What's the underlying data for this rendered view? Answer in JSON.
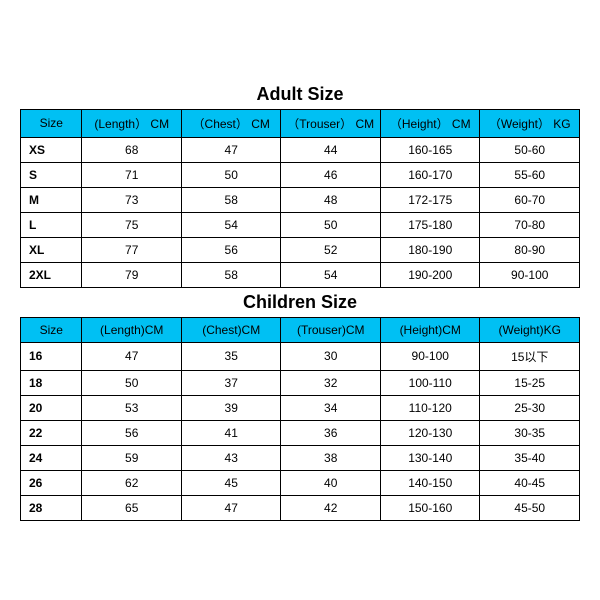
{
  "styling": {
    "header_bg": "#00c0f3",
    "header_text_color": "#000000",
    "border_color": "#000000",
    "title_fontsize": 18,
    "cell_fontsize": 12,
    "background": "#ffffff"
  },
  "adult": {
    "title": "Adult Size",
    "columns": [
      "Size",
      "(Length） CM",
      "（Chest） CM",
      "（Trouser） CM",
      "（Height） CM",
      "（Weight） KG"
    ],
    "rows": [
      [
        "XS",
        "68",
        "47",
        "44",
        "160-165",
        "50-60"
      ],
      [
        "S",
        "71",
        "50",
        "46",
        "160-170",
        "55-60"
      ],
      [
        "M",
        "73",
        "58",
        "48",
        "172-175",
        "60-70"
      ],
      [
        "L",
        "75",
        "54",
        "50",
        "175-180",
        "70-80"
      ],
      [
        "XL",
        "77",
        "56",
        "52",
        "180-190",
        "80-90"
      ],
      [
        "2XL",
        "79",
        "58",
        "54",
        "190-200",
        "90-100"
      ]
    ]
  },
  "children": {
    "title": "Children Size",
    "columns": [
      "Size",
      "(Length)CM",
      "(Chest)CM",
      "(Trouser)CM",
      "(Height)CM",
      "(Weight)KG"
    ],
    "rows": [
      [
        "16",
        "47",
        "35",
        "30",
        "90-100",
        "15以下"
      ],
      [
        "18",
        "50",
        "37",
        "32",
        "100-110",
        "15-25"
      ],
      [
        "20",
        "53",
        "39",
        "34",
        "110-120",
        "25-30"
      ],
      [
        "22",
        "56",
        "41",
        "36",
        "120-130",
        "30-35"
      ],
      [
        "24",
        "59",
        "43",
        "38",
        "130-140",
        "35-40"
      ],
      [
        "26",
        "62",
        "45",
        "40",
        "140-150",
        "40-45"
      ],
      [
        "28",
        "65",
        "47",
        "42",
        "150-160",
        "45-50"
      ]
    ]
  }
}
